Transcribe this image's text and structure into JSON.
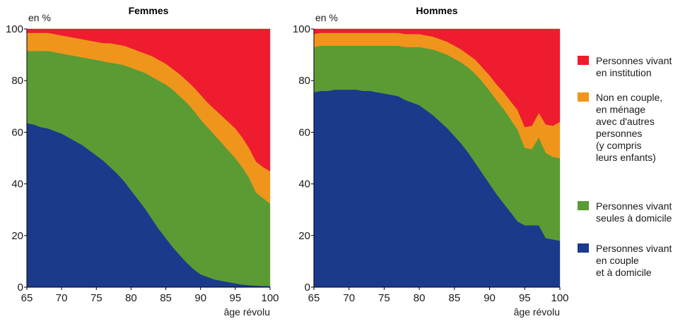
{
  "chart_data": [
    {
      "type": "area",
      "stacked": true,
      "title": "Femmes",
      "ylabel": "en %",
      "xlabel": "âge révolu",
      "xlim": [
        65,
        100
      ],
      "ylim": [
        0,
        100
      ],
      "xticks": [
        65,
        70,
        75,
        80,
        85,
        90,
        95,
        100
      ],
      "yticks": [
        0,
        20,
        40,
        60,
        80,
        100
      ],
      "x": [
        65,
        66,
        67,
        68,
        69,
        70,
        71,
        72,
        73,
        74,
        75,
        76,
        77,
        78,
        79,
        80,
        81,
        82,
        83,
        84,
        85,
        86,
        87,
        88,
        89,
        90,
        91,
        92,
        93,
        94,
        95,
        96,
        97,
        98,
        99,
        100
      ],
      "series": [
        {
          "key": "couple",
          "values": [
            63.5,
            63,
            62,
            61.5,
            60.5,
            59.5,
            58,
            56.5,
            55,
            53,
            51,
            49,
            46.5,
            44,
            41,
            37.5,
            34,
            30.5,
            26.5,
            22.5,
            19,
            15.5,
            12.5,
            9.5,
            7,
            5,
            4,
            3,
            2.5,
            2,
            1.5,
            1,
            0.8,
            0.6,
            0.5,
            0.4
          ]
        },
        {
          "key": "seules",
          "values": [
            28,
            28.5,
            29.5,
            30,
            30.5,
            31,
            32,
            33,
            34,
            35.5,
            37,
            38.5,
            40.5,
            42.5,
            45,
            47.5,
            50,
            52.5,
            55,
            57.5,
            59.5,
            61,
            61.5,
            62,
            61.5,
            60,
            58,
            56,
            53.5,
            51,
            48.5,
            45.5,
            41.5,
            36,
            34,
            32
          ]
        },
        {
          "key": "non_couple",
          "values": [
            7,
            7,
            7,
            7,
            7,
            7,
            7,
            7,
            7,
            7,
            7,
            7,
            7.5,
            7.5,
            7.5,
            7.5,
            7.5,
            7.5,
            8,
            8,
            8,
            8,
            8.5,
            8.5,
            9,
            9.5,
            9.5,
            10,
            10.5,
            11,
            11.5,
            11.5,
            11.5,
            12,
            12,
            12.5
          ]
        },
        {
          "key": "institution",
          "values": [
            1.5,
            1.5,
            1.5,
            1.5,
            2,
            2.5,
            3,
            3.5,
            4,
            4.5,
            5,
            5.5,
            5.5,
            6,
            6.5,
            7.5,
            8.5,
            9.5,
            10.5,
            12,
            13.5,
            15.5,
            17.5,
            20,
            22.5,
            25.5,
            28.5,
            31,
            33.5,
            36,
            38.5,
            42,
            46.2,
            51.4,
            53.5,
            55.1
          ]
        }
      ]
    },
    {
      "type": "area",
      "stacked": true,
      "title": "Hommes",
      "ylabel": "en %",
      "xlabel": "âge révolu",
      "xlim": [
        65,
        100
      ],
      "ylim": [
        0,
        100
      ],
      "xticks": [
        65,
        70,
        75,
        80,
        85,
        90,
        95,
        100
      ],
      "yticks": [
        0,
        20,
        40,
        60,
        80,
        100
      ],
      "x": [
        65,
        66,
        67,
        68,
        69,
        70,
        71,
        72,
        73,
        74,
        75,
        76,
        77,
        78,
        79,
        80,
        81,
        82,
        83,
        84,
        85,
        86,
        87,
        88,
        89,
        90,
        91,
        92,
        93,
        94,
        95,
        96,
        97,
        98,
        99,
        100
      ],
      "series": [
        {
          "key": "couple",
          "values": [
            75.5,
            76,
            76,
            76.5,
            76.5,
            76.5,
            76.5,
            76,
            76,
            75.5,
            75,
            74.5,
            74,
            72.5,
            71.5,
            70.5,
            68.5,
            66.5,
            64,
            61.5,
            58.5,
            55.5,
            52,
            48,
            44,
            40,
            36,
            32.5,
            29,
            25.5,
            24,
            24,
            24,
            19,
            18.5,
            18
          ]
        },
        {
          "key": "seules",
          "values": [
            17.5,
            17.5,
            17.5,
            17,
            17,
            17,
            17,
            17.5,
            17.5,
            18,
            18.5,
            19,
            19.5,
            20.5,
            21.5,
            22.5,
            24,
            25.5,
            27,
            28.5,
            30,
            31.5,
            33,
            34.5,
            35.5,
            36,
            36.5,
            36.5,
            36,
            35.5,
            30,
            29.5,
            34,
            33,
            32,
            32
          ]
        },
        {
          "key": "non_couple",
          "values": [
            5,
            5,
            5,
            5,
            5,
            5,
            5,
            5,
            5,
            5,
            5,
            5,
            5,
            5,
            5,
            5,
            5,
            5,
            5,
            5,
            5,
            5,
            5,
            5.5,
            5.5,
            6,
            6,
            6.5,
            7,
            7.5,
            8,
            9,
            9.5,
            11,
            12,
            14
          ]
        },
        {
          "key": "institution",
          "values": [
            2,
            1.5,
            1.5,
            1.5,
            1.5,
            1.5,
            1.5,
            1.5,
            1.5,
            1.5,
            1.5,
            1.5,
            1.5,
            2,
            2,
            2,
            2.5,
            3,
            4,
            5,
            6.5,
            8,
            10,
            12,
            15,
            18,
            21.5,
            24.5,
            28,
            31.5,
            38,
            37.5,
            32.5,
            37,
            37.5,
            36
          ]
        }
      ]
    }
  ],
  "legend": {
    "placement": "right",
    "items": [
      {
        "key": "institution",
        "color": "#ee1c2e",
        "lines": [
          "Personnes vivant",
          "en institution"
        ]
      },
      {
        "key": "non_couple",
        "color": "#f0951c",
        "lines": [
          "Non en couple,",
          "en ménage",
          "avec d'autres",
          "personnes",
          "(y compris",
          "leurs enfants)"
        ]
      },
      {
        "key": "seules",
        "color": "#5b9b34",
        "lines": [
          "Personnes vivant",
          "seules à domicile"
        ]
      },
      {
        "key": "couple",
        "color": "#1b3a8c",
        "lines": [
          "Personnes vivant",
          "en couple",
          "et à domicile"
        ]
      }
    ]
  }
}
